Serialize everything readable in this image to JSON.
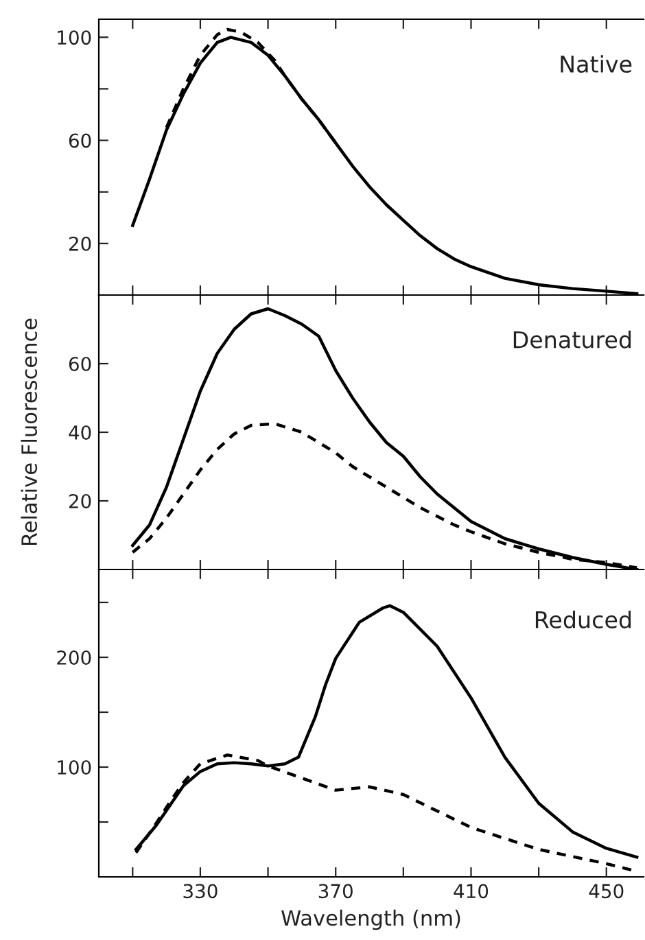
{
  "chart_data": [
    {
      "type": "line",
      "annotations": [
        "Native"
      ],
      "xlim": [
        300,
        461
      ],
      "ylim": [
        0,
        107
      ],
      "xticks": [
        {
          "value": 310,
          "label": null
        },
        {
          "value": 330,
          "label": null
        },
        {
          "value": 350,
          "label": null
        },
        {
          "value": 370,
          "label": null
        },
        {
          "value": 390,
          "label": null
        },
        {
          "value": 410,
          "label": null
        },
        {
          "value": 430,
          "label": null
        },
        {
          "value": 450,
          "label": null
        }
      ],
      "yticks": [
        20,
        {
          "value": 40,
          "label": null
        },
        60,
        {
          "value": 80,
          "label": null
        },
        100
      ],
      "tick_labels": "y",
      "grid": false,
      "legend": false,
      "series": [
        {
          "color": "#000000",
          "line_style": "solid",
          "x": [
            310,
            315,
            320,
            325,
            330,
            335,
            339,
            345,
            350,
            355,
            360,
            365,
            370,
            375,
            380,
            385,
            390,
            395,
            400,
            405,
            410,
            420,
            430,
            440,
            450,
            459
          ],
          "values": [
            27,
            45,
            64,
            78,
            90,
            98,
            100,
            98,
            93,
            85,
            76,
            68,
            59,
            50,
            42,
            35,
            29,
            23,
            18,
            14,
            11,
            6.5,
            4,
            2.5,
            1.5,
            0.5
          ]
        },
        {
          "color": "#000000",
          "line_style": "dashed",
          "x": [
            320,
            325,
            330,
            335,
            338,
            342,
            347,
            352,
            355,
            360,
            365,
            370
          ],
          "values": [
            65,
            80,
            93,
            101,
            103,
            102,
            98,
            91,
            85,
            76,
            68,
            59
          ]
        }
      ]
    },
    {
      "type": "line",
      "ylabel": "Relative Fluorescence",
      "annotations": [
        "Denatured"
      ],
      "xlim": [
        300,
        461
      ],
      "ylim": [
        0,
        80
      ],
      "xticks": [
        {
          "value": 310,
          "label": null
        },
        {
          "value": 330,
          "label": null
        },
        {
          "value": 350,
          "label": null
        },
        {
          "value": 370,
          "label": null
        },
        {
          "value": 390,
          "label": null
        },
        {
          "value": 410,
          "label": null
        },
        {
          "value": 430,
          "label": null
        },
        {
          "value": 450,
          "label": null
        }
      ],
      "yticks": [
        20,
        40,
        60
      ],
      "tick_labels": "y",
      "grid": false,
      "legend": false,
      "series": [
        {
          "color": "#000000",
          "line_style": "solid",
          "x": [
            310,
            315,
            320,
            325,
            330,
            335,
            340,
            345,
            350,
            355,
            360,
            365,
            370,
            375,
            380,
            385,
            390,
            395,
            400,
            405,
            410,
            420,
            430,
            440,
            450,
            459
          ],
          "values": [
            7,
            13,
            24,
            38,
            52,
            63,
            70,
            74.5,
            76,
            74,
            71.5,
            68,
            58,
            50,
            43,
            37,
            33,
            27,
            22,
            18,
            14,
            9,
            6,
            3.5,
            1.5,
            0
          ]
        },
        {
          "color": "#000000",
          "line_style": "dashed",
          "x": [
            310,
            315,
            320,
            325,
            330,
            335,
            340,
            345,
            352,
            360,
            365,
            370,
            375,
            380,
            385,
            390,
            395,
            400,
            405,
            410,
            420,
            430,
            440,
            450,
            459
          ],
          "values": [
            5,
            9,
            15,
            22,
            29,
            35,
            39.5,
            42,
            42.5,
            40,
            37,
            34,
            30,
            27,
            24,
            21,
            18,
            15.5,
            13,
            11,
            7.5,
            5,
            3,
            2,
            0.5
          ]
        }
      ]
    },
    {
      "type": "line",
      "xlabel": "Wavelength (nm)",
      "annotations": [
        "Reduced"
      ],
      "xlim": [
        300,
        461
      ],
      "ylim": [
        0,
        280
      ],
      "xticks": [
        {
          "value": 310,
          "label": null
        },
        330,
        {
          "value": 350,
          "label": null
        },
        370,
        {
          "value": 390,
          "label": null
        },
        410,
        {
          "value": 430,
          "label": null
        },
        450
      ],
      "yticks": [
        {
          "value": 50,
          "label": null
        },
        100,
        {
          "value": 150,
          "label": null
        },
        200,
        {
          "value": 250,
          "label": null
        }
      ],
      "grid": false,
      "legend": false,
      "series": [
        {
          "color": "#000000",
          "line_style": "solid",
          "x": [
            311,
            317,
            321,
            325,
            330,
            335,
            340,
            345,
            350,
            355,
            359,
            364,
            367,
            370,
            377,
            384,
            386,
            390,
            400,
            410,
            420,
            430,
            440,
            450,
            459
          ],
          "values": [
            25,
            47,
            65,
            83,
            96,
            103,
            104,
            103,
            101,
            103,
            109,
            146,
            175,
            199,
            232,
            245,
            247,
            241,
            210,
            163,
            109,
            67,
            41,
            26,
            18
          ]
        },
        {
          "color": "#000000",
          "line_style": "dashed",
          "x": [
            311,
            317,
            321,
            325,
            330,
            338,
            347,
            350,
            360,
            370,
            380,
            390,
            400,
            410,
            430,
            450,
            459
          ],
          "values": [
            22,
            49,
            68,
            86,
            103,
            111,
            106,
            101,
            90,
            79,
            82,
            75,
            60,
            45,
            25,
            12,
            5
          ]
        }
      ]
    }
  ]
}
